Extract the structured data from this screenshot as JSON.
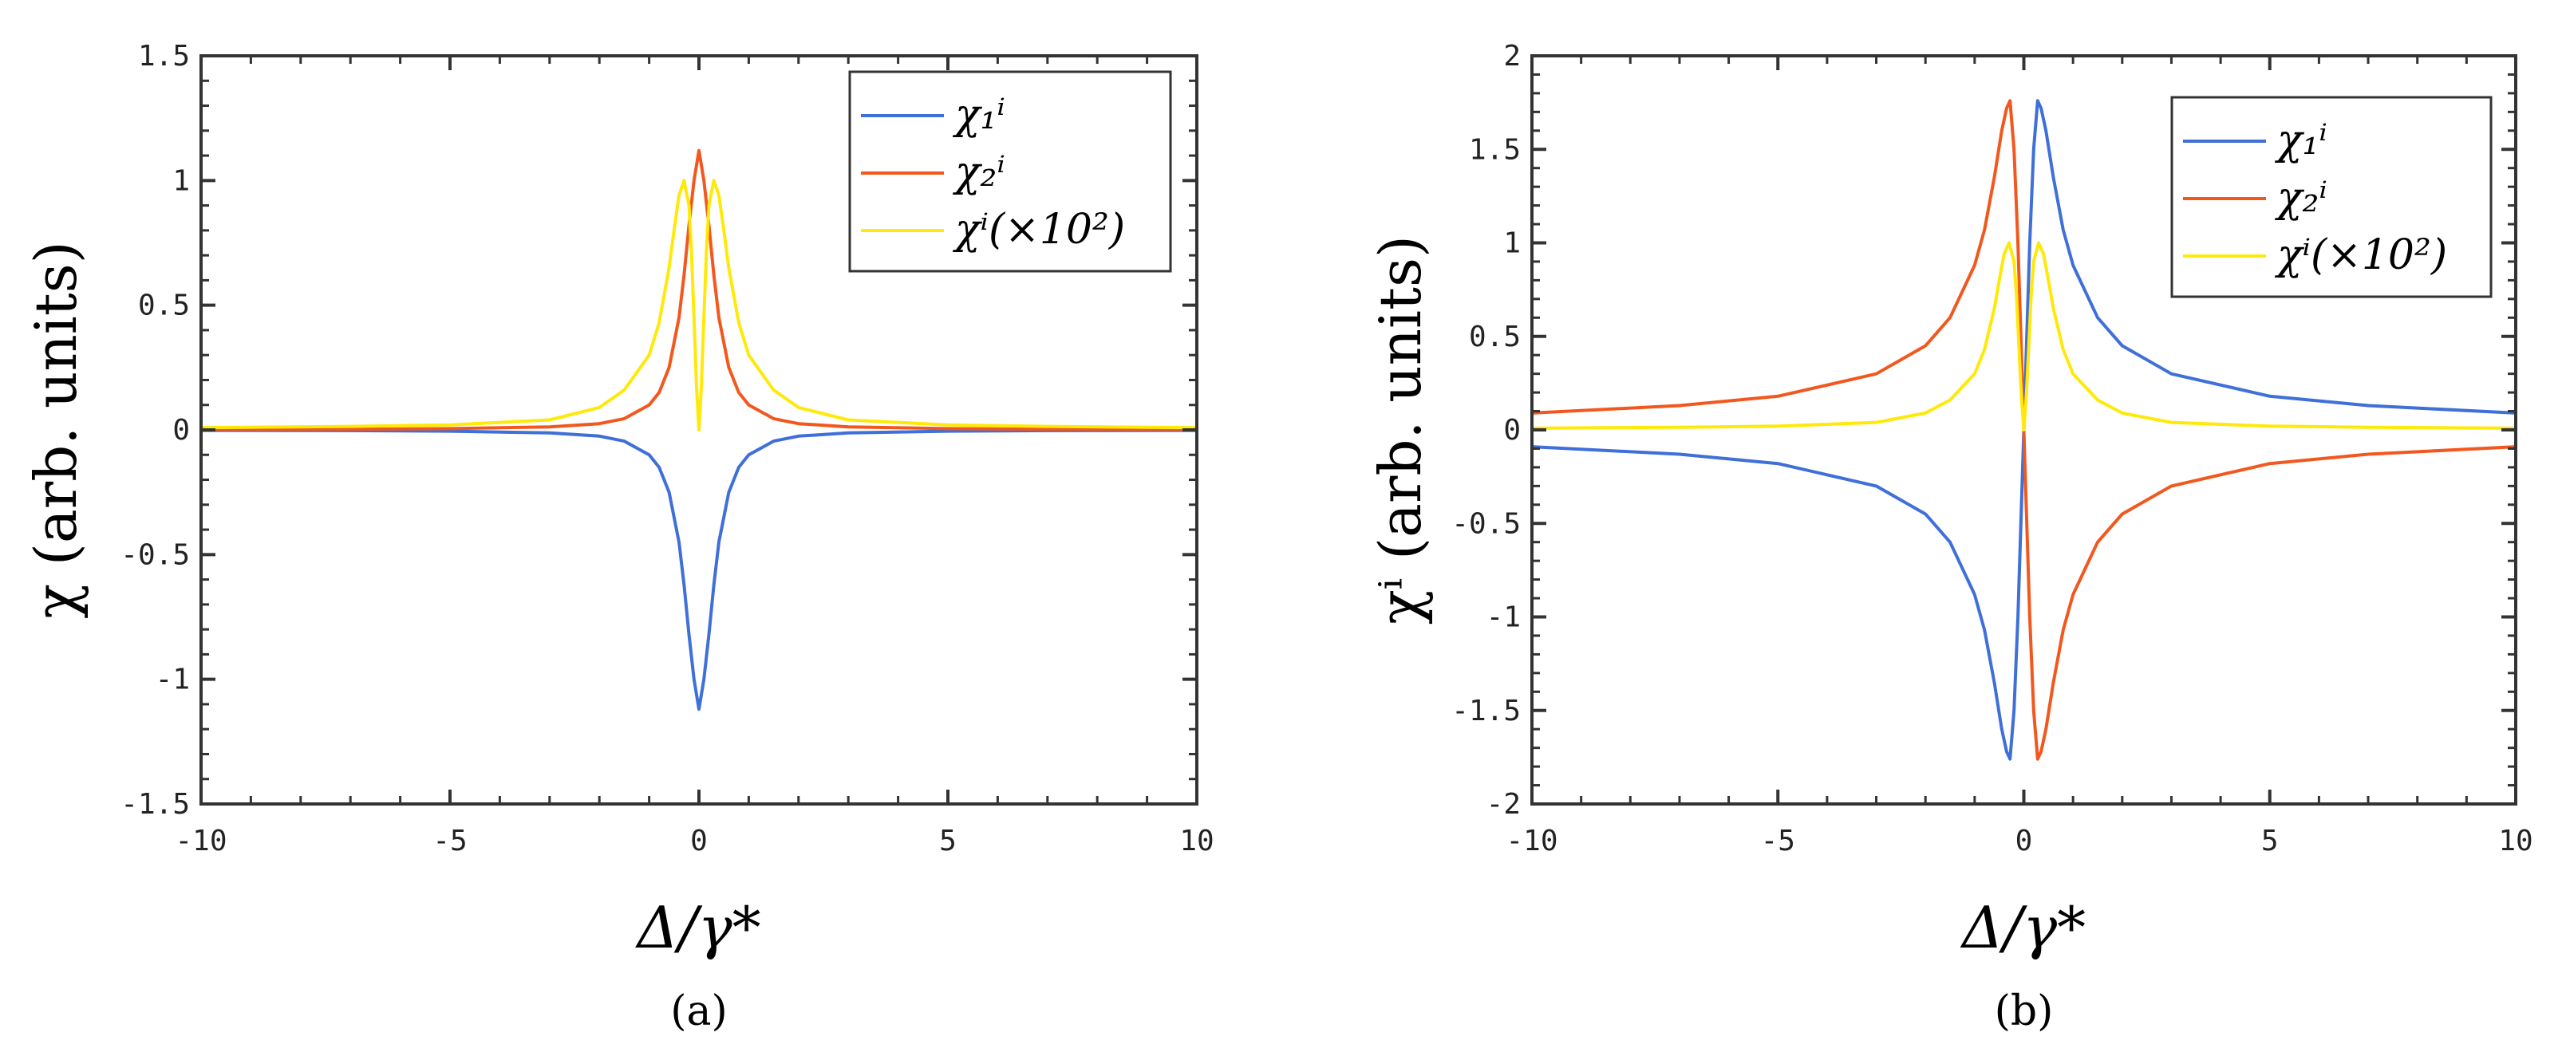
{
  "chart_data": [
    {
      "type": "line",
      "id": "a",
      "caption": "(a)",
      "xlabel": "Δ/γ*",
      "ylabel": "χ (arb. units)",
      "xlim": [
        -10,
        10
      ],
      "ylim": [
        -1.5,
        1.5
      ],
      "xticks": [
        -10,
        -5,
        0,
        5,
        10
      ],
      "xtick_labels": [
        "-10",
        "-5",
        "0",
        "5",
        "10"
      ],
      "yticks": [
        -1.5,
        -1,
        -0.5,
        0,
        0.5,
        1,
        1.5
      ],
      "ytick_labels": [
        "-1.5",
        "-1",
        "-0.5",
        "0",
        "0.5",
        "1",
        "1.5"
      ],
      "grid": false,
      "legend_position": "top-right",
      "series": [
        {
          "name": "χ₁ⁱ",
          "color": "#3f6fd8",
          "x": [
            -10,
            -7,
            -5,
            -3,
            -2,
            -1.5,
            -1,
            -0.8,
            -0.6,
            -0.4,
            -0.3,
            -0.2,
            -0.1,
            0,
            0.1,
            0.2,
            0.3,
            0.4,
            0.6,
            0.8,
            1,
            1.5,
            2,
            3,
            5,
            7,
            10
          ],
          "y": [
            -0.002,
            -0.003,
            -0.005,
            -0.012,
            -0.025,
            -0.045,
            -0.1,
            -0.15,
            -0.25,
            -0.45,
            -0.62,
            -0.82,
            -1.0,
            -1.12,
            -1.0,
            -0.82,
            -0.62,
            -0.45,
            -0.25,
            -0.15,
            -0.1,
            -0.045,
            -0.025,
            -0.012,
            -0.005,
            -0.003,
            -0.002
          ]
        },
        {
          "name": "χ₂ⁱ",
          "color": "#f2581e",
          "x": [
            -10,
            -7,
            -5,
            -3,
            -2,
            -1.5,
            -1,
            -0.8,
            -0.6,
            -0.4,
            -0.3,
            -0.2,
            -0.1,
            0,
            0.1,
            0.2,
            0.3,
            0.4,
            0.6,
            0.8,
            1,
            1.5,
            2,
            3,
            5,
            7,
            10
          ],
          "y": [
            0.002,
            0.003,
            0.005,
            0.012,
            0.025,
            0.045,
            0.1,
            0.15,
            0.25,
            0.45,
            0.62,
            0.82,
            1.0,
            1.12,
            1.0,
            0.82,
            0.62,
            0.45,
            0.25,
            0.15,
            0.1,
            0.045,
            0.025,
            0.012,
            0.005,
            0.003,
            0.002
          ]
        },
        {
          "name": "χⁱ(×10²)",
          "color": "#ffe90a",
          "x": [
            -10,
            -7,
            -5,
            -3,
            -2,
            -1.5,
            -1,
            -0.8,
            -0.6,
            -0.5,
            -0.4,
            -0.3,
            -0.2,
            -0.15,
            -0.1,
            -0.05,
            0,
            0.05,
            0.1,
            0.15,
            0.2,
            0.3,
            0.4,
            0.5,
            0.6,
            0.8,
            1,
            1.5,
            2,
            3,
            5,
            7,
            10
          ],
          "y": [
            0.009,
            0.014,
            0.02,
            0.04,
            0.09,
            0.16,
            0.3,
            0.43,
            0.65,
            0.8,
            0.94,
            1.0,
            0.9,
            0.72,
            0.45,
            0.18,
            0.0,
            0.18,
            0.45,
            0.72,
            0.9,
            1.0,
            0.94,
            0.8,
            0.65,
            0.43,
            0.3,
            0.16,
            0.09,
            0.04,
            0.02,
            0.014,
            0.009
          ]
        }
      ]
    },
    {
      "type": "line",
      "id": "b",
      "caption": "(b)",
      "xlabel": "Δ/γ*",
      "ylabel": "χⁱ (arb. units)",
      "xlim": [
        -10,
        10
      ],
      "ylim": [
        -2,
        2
      ],
      "xticks": [
        -10,
        -5,
        0,
        5,
        10
      ],
      "xtick_labels": [
        "-10",
        "-5",
        "0",
        "5",
        "10"
      ],
      "yticks": [
        -2,
        -1.5,
        -1,
        -0.5,
        0,
        0.5,
        1,
        1.5,
        2
      ],
      "ytick_labels": [
        "-2",
        "-1.5",
        "-1",
        "-0.5",
        "0",
        "0.5",
        "1",
        "1.5",
        "2"
      ],
      "grid": false,
      "legend_position": "top-right",
      "series": [
        {
          "name": "χ₁ⁱ",
          "color": "#3f6fd8",
          "x": [
            -10,
            -7,
            -5,
            -3,
            -2,
            -1.5,
            -1,
            -0.8,
            -0.6,
            -0.45,
            -0.35,
            -0.28,
            -0.2,
            -0.12,
            -0.06,
            0,
            0.06,
            0.12,
            0.2,
            0.28,
            0.35,
            0.45,
            0.6,
            0.8,
            1,
            1.5,
            2,
            3,
            5,
            7,
            10
          ],
          "y": [
            -0.09,
            -0.13,
            -0.18,
            -0.3,
            -0.45,
            -0.6,
            -0.88,
            -1.07,
            -1.35,
            -1.6,
            -1.72,
            -1.76,
            -1.5,
            -1.0,
            -0.5,
            0,
            0.5,
            1.0,
            1.5,
            1.76,
            1.72,
            1.6,
            1.35,
            1.07,
            0.88,
            0.6,
            0.45,
            0.3,
            0.18,
            0.13,
            0.09
          ]
        },
        {
          "name": "χ₂ⁱ",
          "color": "#f2581e",
          "x": [
            -10,
            -7,
            -5,
            -3,
            -2,
            -1.5,
            -1,
            -0.8,
            -0.6,
            -0.45,
            -0.35,
            -0.28,
            -0.2,
            -0.12,
            -0.06,
            0,
            0.06,
            0.12,
            0.2,
            0.28,
            0.35,
            0.45,
            0.6,
            0.8,
            1,
            1.5,
            2,
            3,
            5,
            7,
            10
          ],
          "y": [
            0.09,
            0.13,
            0.18,
            0.3,
            0.45,
            0.6,
            0.88,
            1.07,
            1.35,
            1.6,
            1.72,
            1.76,
            1.5,
            1.0,
            0.5,
            0,
            -0.5,
            -1.0,
            -1.5,
            -1.76,
            -1.72,
            -1.6,
            -1.35,
            -1.07,
            -0.88,
            -0.6,
            -0.45,
            -0.3,
            -0.18,
            -0.13,
            -0.09
          ]
        },
        {
          "name": "χⁱ(×10²)",
          "color": "#ffe90a",
          "x": [
            -10,
            -7,
            -5,
            -3,
            -2,
            -1.5,
            -1,
            -0.8,
            -0.6,
            -0.5,
            -0.4,
            -0.3,
            -0.2,
            -0.15,
            -0.1,
            -0.05,
            0,
            0.05,
            0.1,
            0.15,
            0.2,
            0.3,
            0.4,
            0.5,
            0.6,
            0.8,
            1,
            1.5,
            2,
            3,
            5,
            7,
            10
          ],
          "y": [
            0.009,
            0.014,
            0.02,
            0.04,
            0.09,
            0.16,
            0.3,
            0.43,
            0.65,
            0.8,
            0.94,
            1.0,
            0.9,
            0.72,
            0.45,
            0.18,
            0.0,
            0.18,
            0.45,
            0.72,
            0.9,
            1.0,
            0.94,
            0.8,
            0.65,
            0.43,
            0.3,
            0.16,
            0.09,
            0.04,
            0.02,
            0.014,
            0.009
          ]
        }
      ]
    }
  ]
}
